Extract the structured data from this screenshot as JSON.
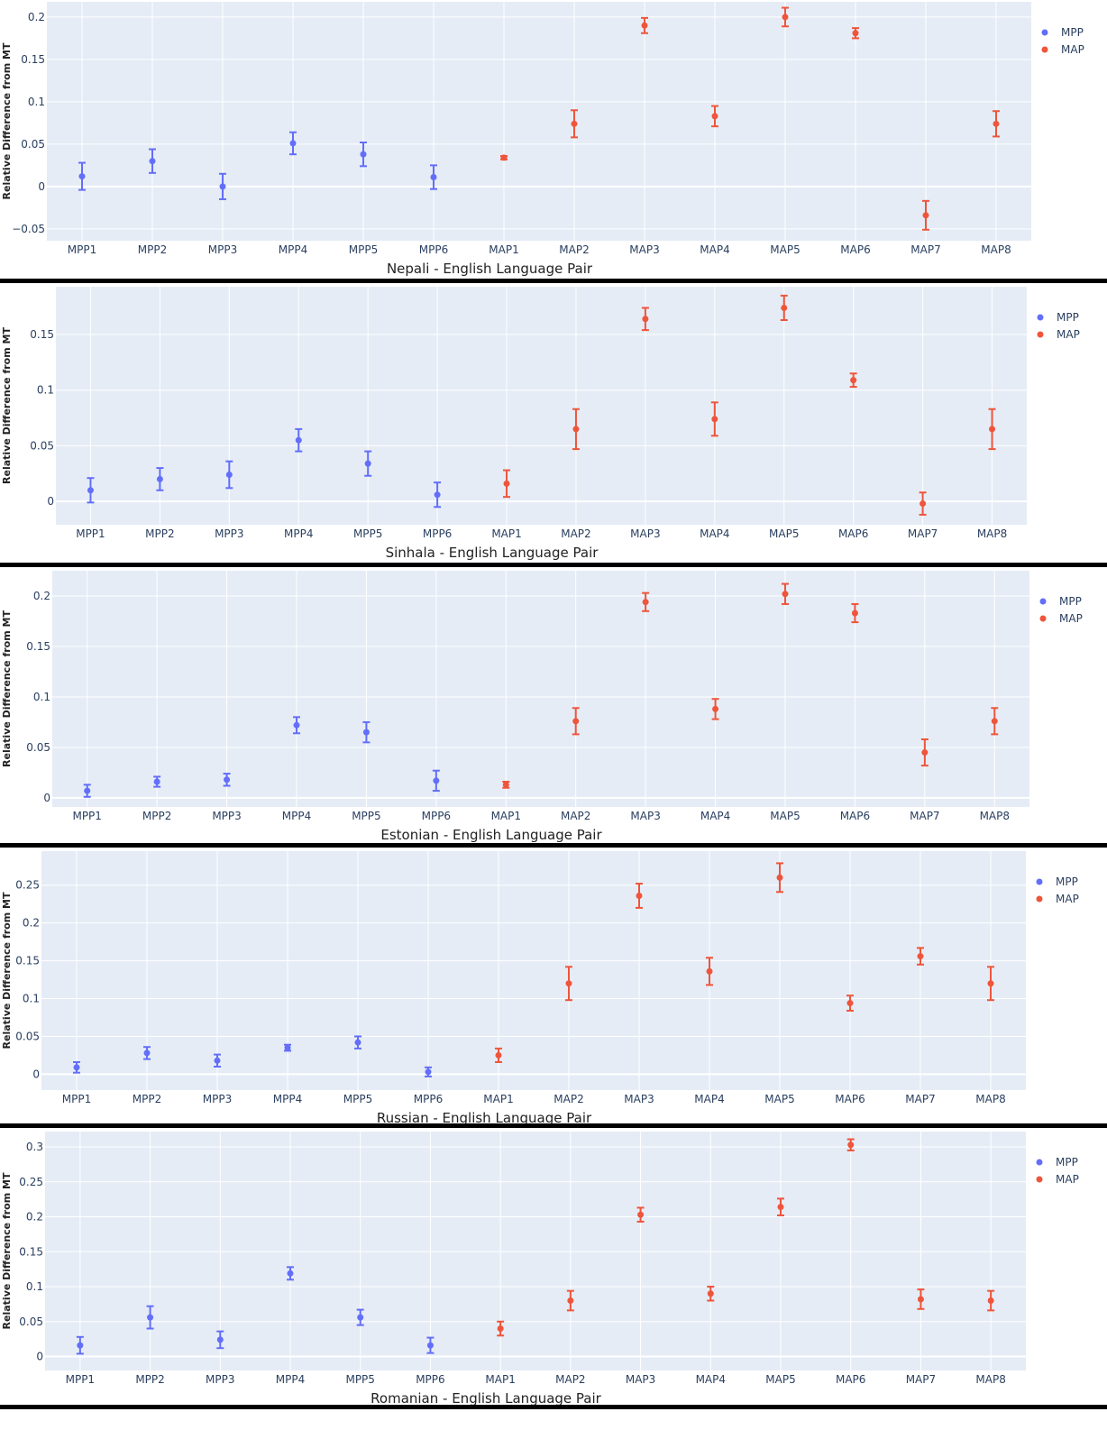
{
  "colors": {
    "MPP": "#636efa",
    "MAP": "#ef553b",
    "plot_bg": "#e5ecf6",
    "grid": "#ffffff",
    "separator": "#000000"
  },
  "common": {
    "ylabel": "Relative Difference from MT",
    "categories": [
      "MPP1",
      "MPP2",
      "MPP3",
      "MPP4",
      "MPP5",
      "MPP6",
      "MAP1",
      "MAP2",
      "MAP3",
      "MAP4",
      "MAP5",
      "MAP6",
      "MAP7",
      "MAP8"
    ],
    "legend": [
      "MPP",
      "MAP"
    ]
  },
  "chart_data": [
    {
      "type": "scatter",
      "title": "Nepali - English Language Pair",
      "ylabel": "Relative Difference from MT",
      "categories": [
        "MPP1",
        "MPP2",
        "MPP3",
        "MPP4",
        "MPP5",
        "MPP6",
        "MAP1",
        "MAP2",
        "MAP3",
        "MAP4",
        "MAP5",
        "MAP6",
        "MAP7",
        "MAP8"
      ],
      "yticks": [
        "−0.05",
        "0",
        "0.05",
        "0.1",
        "0.15",
        "0.2"
      ],
      "ytick_values": [
        -0.05,
        0,
        0.05,
        0.1,
        0.15,
        0.2
      ],
      "ylim": [
        -0.064,
        0.218
      ],
      "legend_position": "top-right",
      "series": [
        {
          "name": "MPP",
          "values": [
            0.012,
            0.03,
            0.0,
            0.051,
            0.038,
            0.011
          ],
          "errors": [
            0.016,
            0.014,
            0.015,
            0.013,
            0.014,
            0.014
          ]
        },
        {
          "name": "MAP",
          "values": [
            0.034,
            0.074,
            0.19,
            0.083,
            0.2,
            0.181,
            -0.034,
            0.074
          ],
          "errors": [
            0.002,
            0.016,
            0.009,
            0.012,
            0.011,
            0.006,
            0.017,
            0.015
          ]
        }
      ]
    },
    {
      "type": "scatter",
      "title": "Sinhala - English Language Pair",
      "ylabel": "Relative Difference from MT",
      "categories": [
        "MPP1",
        "MPP2",
        "MPP3",
        "MPP4",
        "MPP5",
        "MPP6",
        "MAP1",
        "MAP2",
        "MAP3",
        "MAP4",
        "MAP5",
        "MAP6",
        "MAP7",
        "MAP8"
      ],
      "yticks": [
        "0",
        "0.05",
        "0.1",
        "0.15"
      ],
      "ytick_values": [
        0,
        0.05,
        0.1,
        0.15
      ],
      "ylim": [
        -0.021,
        0.193
      ],
      "legend_position": "top-right",
      "series": [
        {
          "name": "MPP",
          "values": [
            0.01,
            0.02,
            0.024,
            0.055,
            0.034,
            0.006
          ],
          "errors": [
            0.011,
            0.01,
            0.012,
            0.01,
            0.011,
            0.011
          ]
        },
        {
          "name": "MAP",
          "values": [
            0.016,
            0.065,
            0.164,
            0.074,
            0.174,
            0.109,
            -0.002,
            0.065
          ],
          "errors": [
            0.012,
            0.018,
            0.01,
            0.015,
            0.011,
            0.006,
            0.01,
            0.018
          ]
        }
      ]
    },
    {
      "type": "scatter",
      "title": "Estonian - English Language Pair",
      "ylabel": "Relative Difference from MT",
      "categories": [
        "MPP1",
        "MPP2",
        "MPP3",
        "MPP4",
        "MPP5",
        "MPP6",
        "MAP1",
        "MAP2",
        "MAP3",
        "MAP4",
        "MAP5",
        "MAP6",
        "MAP7",
        "MAP8"
      ],
      "yticks": [
        "0",
        "0.05",
        "0.1",
        "0.15",
        "0.2"
      ],
      "ytick_values": [
        0,
        0.05,
        0.1,
        0.15,
        0.2
      ],
      "ylim": [
        -0.009,
        0.225
      ],
      "legend_position": "top-right",
      "series": [
        {
          "name": "MPP",
          "values": [
            0.007,
            0.016,
            0.018,
            0.072,
            0.065,
            0.017
          ],
          "errors": [
            0.006,
            0.005,
            0.006,
            0.008,
            0.01,
            0.01
          ]
        },
        {
          "name": "MAP",
          "values": [
            0.013,
            0.076,
            0.194,
            0.088,
            0.202,
            0.183,
            0.045,
            0.076
          ],
          "errors": [
            0.003,
            0.013,
            0.009,
            0.01,
            0.01,
            0.009,
            0.013,
            0.013
          ]
        }
      ]
    },
    {
      "type": "scatter",
      "title": "Russian - English Language Pair",
      "ylabel": "Relative Difference from MT",
      "categories": [
        "MPP1",
        "MPP2",
        "MPP3",
        "MPP4",
        "MPP5",
        "MPP6",
        "MAP1",
        "MAP2",
        "MAP3",
        "MAP4",
        "MAP5",
        "MAP6",
        "MAP7",
        "MAP8"
      ],
      "yticks": [
        "0",
        "0.05",
        "0.1",
        "0.15",
        "0.2",
        "0.25"
      ],
      "ytick_values": [
        0,
        0.05,
        0.1,
        0.15,
        0.2,
        0.25
      ],
      "ylim": [
        -0.021,
        0.295
      ],
      "legend_position": "top-right",
      "series": [
        {
          "name": "MPP",
          "values": [
            0.009,
            0.028,
            0.018,
            0.035,
            0.042,
            0.003
          ],
          "errors": [
            0.007,
            0.008,
            0.008,
            0.004,
            0.008,
            0.006
          ]
        },
        {
          "name": "MAP",
          "values": [
            0.025,
            0.12,
            0.236,
            0.136,
            0.26,
            0.094,
            0.156,
            0.12
          ],
          "errors": [
            0.009,
            0.022,
            0.016,
            0.018,
            0.019,
            0.01,
            0.011,
            0.022
          ]
        }
      ]
    },
    {
      "type": "scatter",
      "title": "Romanian - English Language Pair",
      "ylabel": "Relative Difference from MT",
      "categories": [
        "MPP1",
        "MPP2",
        "MPP3",
        "MPP4",
        "MPP5",
        "MPP6",
        "MAP1",
        "MAP2",
        "MAP3",
        "MAP4",
        "MAP5",
        "MAP6",
        "MAP7",
        "MAP8"
      ],
      "yticks": [
        "0",
        "0.05",
        "0.1",
        "0.15",
        "0.2",
        "0.25",
        "0.3"
      ],
      "ytick_values": [
        0,
        0.05,
        0.1,
        0.15,
        0.2,
        0.25,
        0.3
      ],
      "ylim": [
        -0.02,
        0.322
      ],
      "legend_position": "top-right",
      "series": [
        {
          "name": "MPP",
          "values": [
            0.016,
            0.056,
            0.024,
            0.119,
            0.056,
            0.016
          ],
          "errors": [
            0.012,
            0.016,
            0.012,
            0.009,
            0.011,
            0.011
          ]
        },
        {
          "name": "MAP",
          "values": [
            0.04,
            0.08,
            0.203,
            0.09,
            0.214,
            0.303,
            0.082,
            0.08
          ],
          "errors": [
            0.01,
            0.014,
            0.01,
            0.01,
            0.012,
            0.008,
            0.014,
            0.014
          ]
        }
      ]
    }
  ]
}
